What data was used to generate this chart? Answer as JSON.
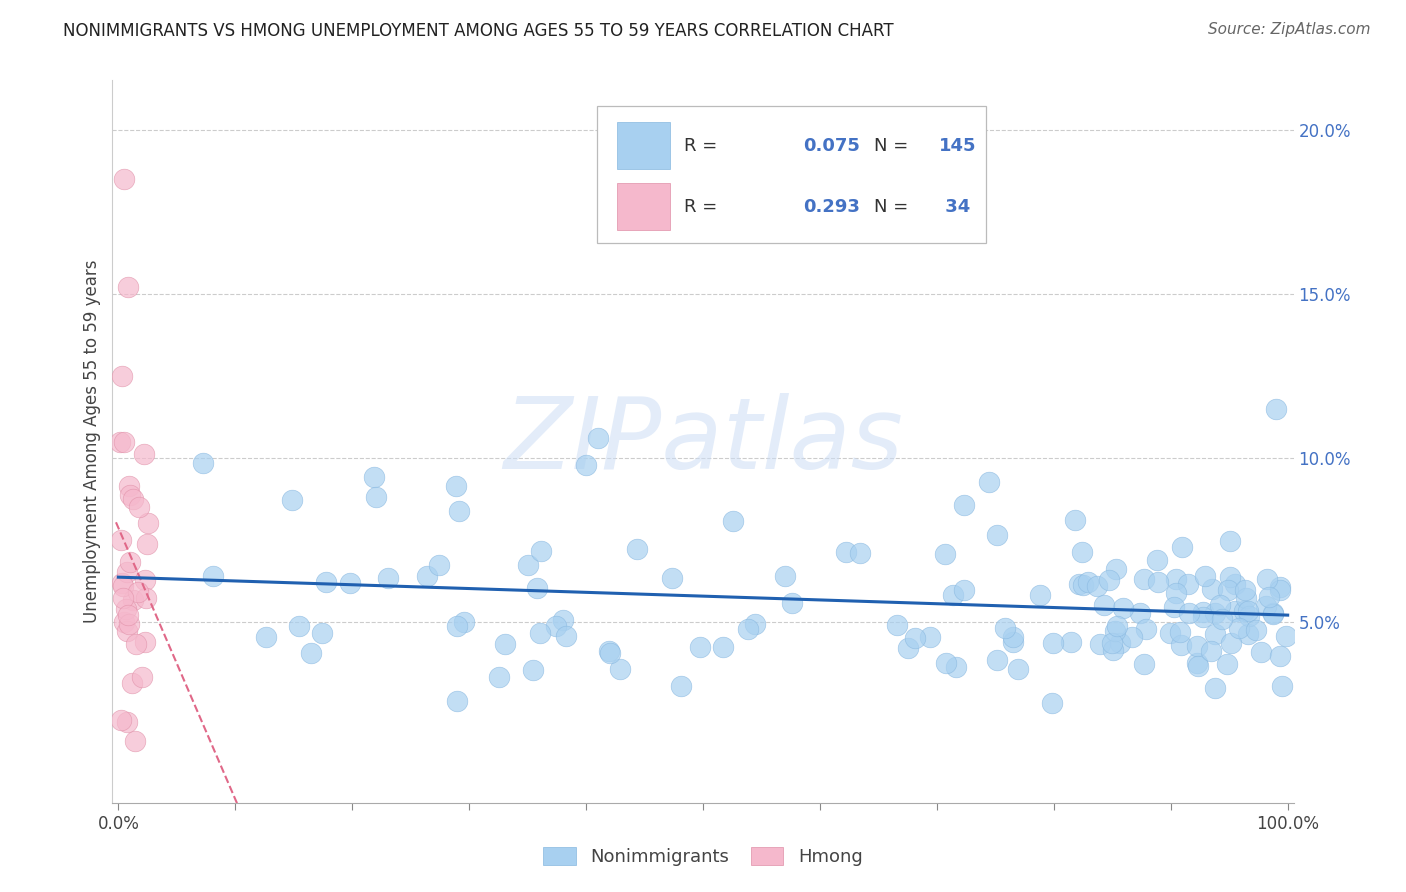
{
  "title": "NONIMMIGRANTS VS HMONG UNEMPLOYMENT AMONG AGES 55 TO 59 YEARS CORRELATION CHART",
  "source": "Source: ZipAtlas.com",
  "ylabel": "Unemployment Among Ages 55 to 59 years",
  "xlim": [
    -0.005,
    1.005
  ],
  "ylim": [
    -0.005,
    0.215
  ],
  "xtick_positions": [
    0.0,
    0.1,
    0.2,
    0.3,
    0.4,
    0.5,
    0.6,
    0.7,
    0.8,
    0.9,
    1.0
  ],
  "xtick_labels_shown": {
    "0.0": "0.0%",
    "1.0": "100.0%"
  },
  "yticks": [
    0.05,
    0.1,
    0.15,
    0.2
  ],
  "yticklabels": [
    "5.0%",
    "10.0%",
    "15.0%",
    "20.0%"
  ],
  "blue_color": "#a8d0f0",
  "pink_color": "#f5b8cc",
  "blue_line_color": "#2060b0",
  "pink_line_color": "#e06888",
  "R_blue": 0.075,
  "N_blue": 145,
  "R_pink": 0.293,
  "N_pink": 34,
  "watermark_text": "ZIPatlas",
  "legend_label_blue": "Nonimmigrants",
  "legend_label_pink": "Hmong",
  "title_fontsize": 12,
  "source_fontsize": 11,
  "tick_fontsize": 12,
  "ylabel_fontsize": 12,
  "legend_fontsize": 13
}
